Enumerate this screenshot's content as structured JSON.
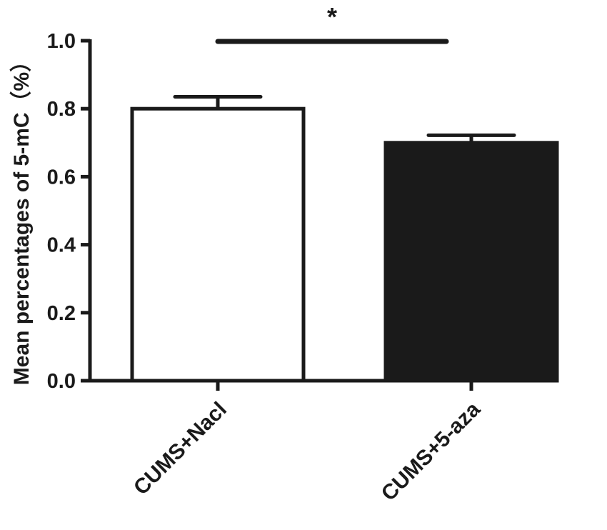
{
  "chart_data": {
    "type": "bar",
    "ylabel": "Mean percentages of 5-mC（%）",
    "xlabel": "",
    "ylim": [
      0,
      1.0
    ],
    "yticks": [
      0.0,
      0.2,
      0.4,
      0.6,
      0.8,
      1.0
    ],
    "ytick_labels": [
      "0.0",
      "0.2",
      "0.4",
      "0.6",
      "0.8",
      "1.0"
    ],
    "categories": [
      "CUMS+Nacl",
      "CUMS+5-aza"
    ],
    "values": [
      0.8,
      0.7
    ],
    "errors": [
      0.035,
      0.022
    ],
    "bar_fills": [
      "#ffffff",
      "#1a1a1a"
    ],
    "significance": {
      "from": 0,
      "to": 1,
      "label": "*"
    },
    "legend": "none",
    "grid": false
  }
}
